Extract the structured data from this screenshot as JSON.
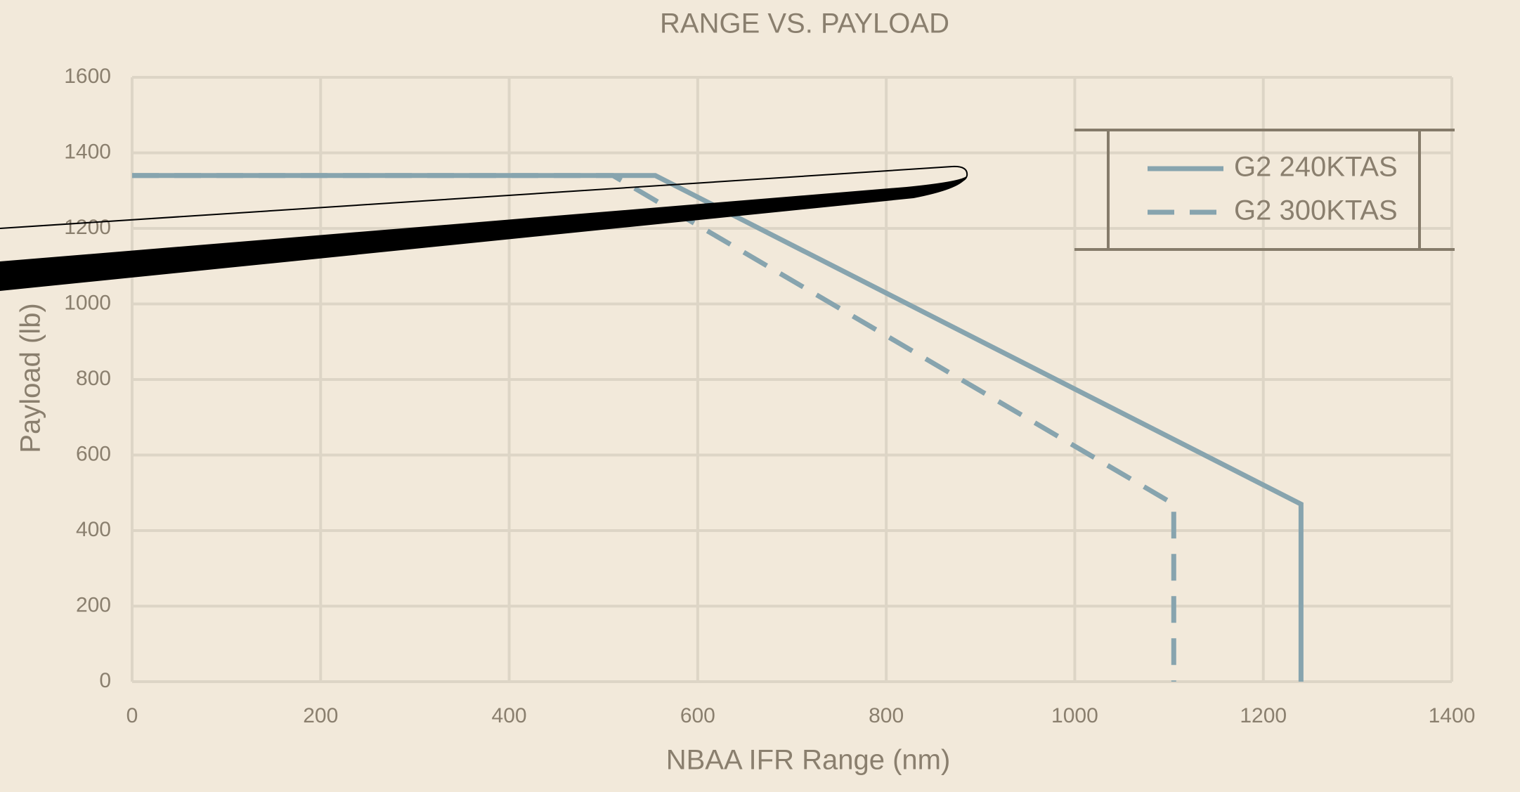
{
  "chart_data": {
    "type": "line",
    "title": "RANGE VS. PAYLOAD",
    "x_label": "NBAA IFR Range (nm)",
    "y_label": "Payload (lb)",
    "series": [
      {
        "name": "G2 240KTAS",
        "color": "#87a4ae",
        "style": "solid",
        "x": [
          0,
          555,
          1240,
          1240
        ],
        "values": [
          1340,
          1340,
          470,
          0
        ]
      },
      {
        "name": "G2 300KTAS",
        "color": "#87a4ae",
        "style": "dashed",
        "x": [
          0,
          510,
          1105,
          1105
        ],
        "values": [
          1340,
          1340,
          470,
          0
        ]
      }
    ],
    "xlim": [
      0,
      1400
    ],
    "xticks": [
      0,
      200,
      400,
      600,
      800,
      1000,
      1200,
      1400
    ],
    "ylim": [
      0,
      1600
    ],
    "yticks": [
      0,
      200,
      400,
      600,
      800,
      1000,
      1200,
      1400,
      1600
    ],
    "grid": true,
    "legend": "upper right"
  }
}
